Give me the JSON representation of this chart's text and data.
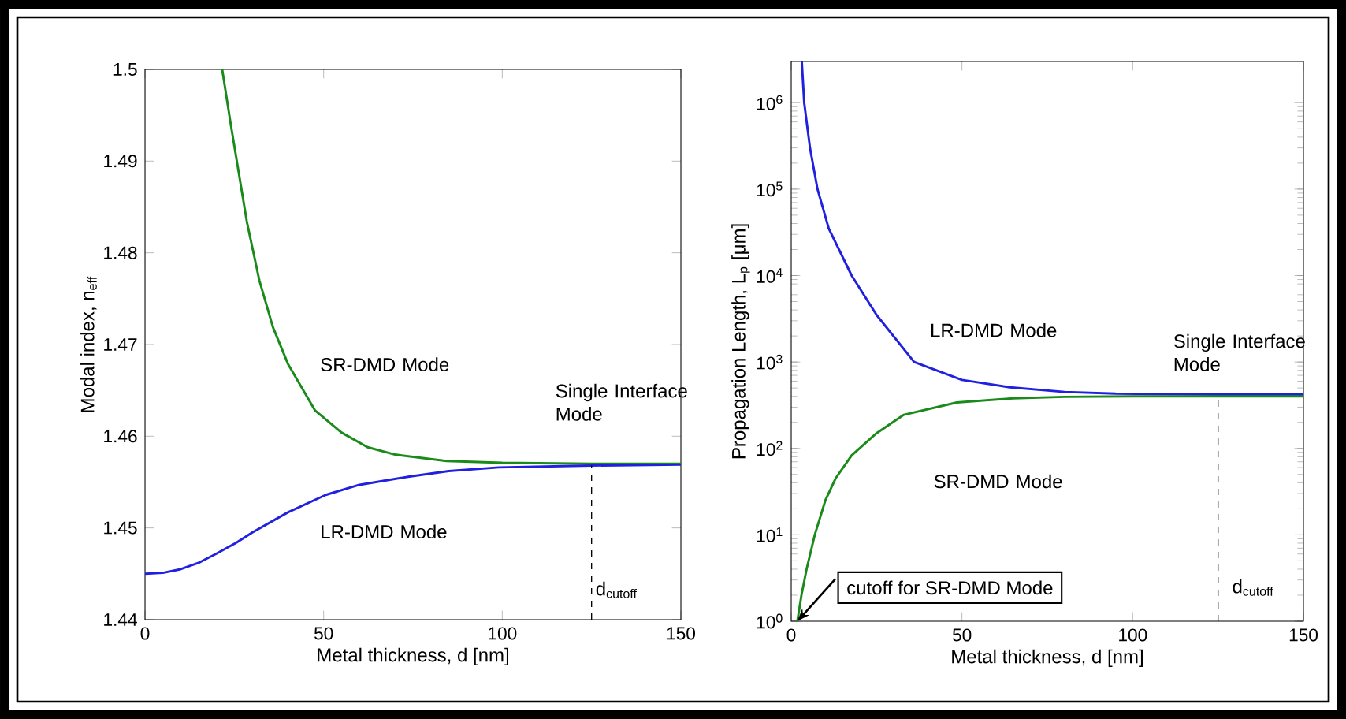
{
  "chart_data": [
    {
      "type": "line",
      "xlabel": "Metal thickness, d [nm]",
      "ylabel": "Modal index, n$_{eff}$",
      "xlim": [
        0,
        150
      ],
      "ylim": [
        1.44,
        1.5
      ],
      "xticks": [
        0,
        50,
        100,
        150
      ],
      "yticks": [
        1.44,
        1.45,
        1.46,
        1.47,
        1.48,
        1.49,
        1.5
      ],
      "series": [
        {
          "color": "#1a8a1a",
          "x": [
            21.6,
            24,
            28.5,
            32,
            35.8,
            40,
            47.6,
            55,
            62.3,
            70,
            84.4,
            100,
            125,
            150
          ],
          "values": [
            1.5,
            1.494,
            1.4834,
            1.477,
            1.4719,
            1.4679,
            1.4628,
            1.4604,
            1.4588,
            1.458,
            1.4573,
            1.4571,
            1.457,
            1.457
          ]
        },
        {
          "color": "#2020e0",
          "x": [
            0,
            5,
            10,
            15,
            20,
            25.6,
            30,
            40,
            50.6,
            60,
            74,
            85,
            99,
            125,
            150
          ],
          "values": [
            1.445,
            1.4451,
            1.4455,
            1.4462,
            1.4472,
            1.4484,
            1.4495,
            1.4517,
            1.4536,
            1.4547,
            1.4556,
            1.4562,
            1.4566,
            1.4568,
            1.4569
          ]
        }
      ],
      "ref_lines": [
        {
          "axis": "x",
          "value": 125,
          "line_style": "dashed"
        }
      ],
      "annotations": [
        "SR-DMD Mode",
        "LR-DMD Mode",
        "Single Interface Mode",
        "d$_{cutoff}$"
      ]
    },
    {
      "type": "line",
      "xlabel": "Metal thickness, d [nm]",
      "ylabel": "Propagation Length, L$_{p}$ [μm]",
      "log": "y",
      "xlim": [
        0,
        150
      ],
      "ylim": [
        1,
        3000000
      ],
      "xticks": [
        0,
        50,
        100,
        150
      ],
      "yticks": [
        {
          "value": 1,
          "label": "10$^{0}$"
        },
        {
          "value": 10,
          "label": "10$^{1}$"
        },
        {
          "value": 100,
          "label": "10$^{2}$"
        },
        {
          "value": 1000,
          "label": "10$^{3}$"
        },
        {
          "value": 10000,
          "label": "10$^{4}$"
        },
        {
          "value": 100000,
          "label": "10$^{5}$"
        },
        {
          "value": 1000000,
          "label": "10$^{6}$"
        }
      ],
      "series": [
        {
          "color": "#2020e0",
          "x": [
            3.1,
            3.8,
            5.5,
            7.7,
            11,
            17.7,
            25,
            36,
            50,
            64,
            80,
            95,
            125,
            150
          ],
          "values": [
            3000000,
            1000000,
            300000,
            100000,
            35000,
            10000,
            3500,
            1000,
            620,
            510,
            450,
            430,
            420,
            420
          ]
        },
        {
          "color": "#1a8a1a",
          "x": [
            1.8,
            3,
            4.5,
            6.9,
            10,
            13,
            17.7,
            25,
            33,
            48.5,
            65,
            80,
            100,
            125,
            150
          ],
          "values": [
            1,
            2,
            4,
            10,
            25,
            45,
            83,
            150,
            245,
            340,
            380,
            395,
            400,
            400,
            400
          ]
        }
      ],
      "ref_lines": [
        {
          "axis": "x",
          "value": 125,
          "line_style": "dashed"
        }
      ],
      "annotations": [
        "LR-DMD Mode",
        "SR-DMD Mode",
        "Single Interface Mode",
        "d$_{cutoff}$",
        {
          "text": "cutoff for SR-DMD Mode",
          "x": 1.8,
          "y": 1
        }
      ]
    }
  ]
}
